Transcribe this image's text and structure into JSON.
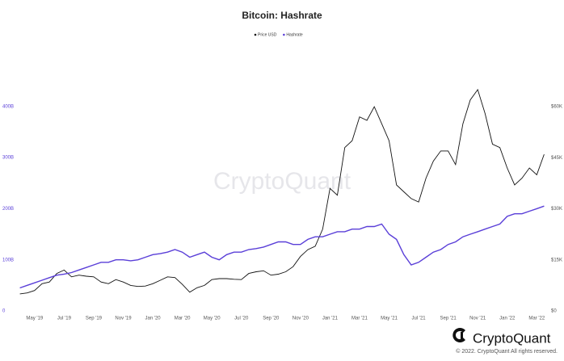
{
  "chart_data": {
    "type": "line",
    "title": "Bitcoin: Hashrate",
    "x": [
      null,
      null,
      "May '19",
      null,
      null,
      null,
      "Jul '19",
      null,
      null,
      null,
      "Sep '19",
      null,
      null,
      null,
      "Nov '19",
      null,
      null,
      null,
      "Jan '20",
      null,
      null,
      null,
      "Mar '20",
      null,
      null,
      null,
      "May '20",
      null,
      null,
      null,
      "Jul '20",
      null,
      null,
      null,
      "Sep '20",
      null,
      null,
      null,
      "Nov '20",
      null,
      null,
      null,
      "Jan '21",
      null,
      null,
      null,
      "Mar '21",
      null,
      null,
      null,
      "May '21",
      null,
      null,
      null,
      "Jul '21",
      null,
      null,
      null,
      "Sep '21",
      null,
      null,
      null,
      "Nov '21",
      null,
      null,
      null,
      "Jan '22",
      null,
      null,
      null,
      "Mar '22",
      null
    ],
    "series": [
      {
        "name": "Price USD",
        "color": "#111111",
        "axis": "y2",
        "values": [
          5000,
          5300,
          6000,
          8000,
          8500,
          11000,
          12000,
          10000,
          10500,
          10200,
          10000,
          8500,
          8000,
          9200,
          8500,
          7500,
          7200,
          7300,
          8000,
          9000,
          10000,
          9800,
          7800,
          5500,
          6800,
          7500,
          9200,
          9500,
          9500,
          9300,
          9200,
          11000,
          11500,
          11800,
          10500,
          10800,
          11500,
          13000,
          16000,
          18000,
          19000,
          24000,
          36000,
          34000,
          48000,
          50000,
          57000,
          56000,
          60000,
          55000,
          50000,
          37000,
          35000,
          33000,
          32000,
          39000,
          44000,
          47000,
          47000,
          43000,
          55000,
          62000,
          65000,
          58000,
          49000,
          48000,
          42000,
          37000,
          39000,
          42000,
          40000,
          46000
        ]
      },
      {
        "name": "Hashrate",
        "color": "#5a3fd8",
        "values": [
          45000000000.0,
          50000000000.0,
          55000000000.0,
          60000000000.0,
          65000000000.0,
          70000000000.0,
          72000000000.0,
          75000000000.0,
          80000000000.0,
          85000000000.0,
          90000000000.0,
          95000000000.0,
          95000000000.0,
          100000000000.0,
          100000000000.0,
          98000000000.0,
          100000000000.0,
          105000000000.0,
          110000000000.0,
          112000000000.0,
          115000000000.0,
          120000000000.0,
          115000000000.0,
          105000000000.0,
          110000000000.0,
          115000000000.0,
          105000000000.0,
          100000000000.0,
          110000000000.0,
          115000000000.0,
          115000000000.0,
          120000000000.0,
          122000000000.0,
          125000000000.0,
          130000000000.0,
          135000000000.0,
          135000000000.0,
          130000000000.0,
          130000000000.0,
          140000000000.0,
          145000000000.0,
          145000000000.0,
          150000000000.0,
          155000000000.0,
          155000000000.0,
          160000000000.0,
          160000000000.0,
          165000000000.0,
          165000000000.0,
          170000000000.0,
          150000000000.0,
          140000000000.0,
          110000000000.0,
          90000000000.0,
          95000000000.0,
          105000000000.0,
          115000000000.0,
          120000000000.0,
          130000000000.0,
          135000000000.0,
          145000000000.0,
          150000000000.0,
          155000000000.0,
          160000000000.0,
          165000000000.0,
          170000000000.0,
          185000000000.0,
          190000000000.0,
          190000000000.0,
          195000000000.0,
          200000000000.0,
          205000000000.0
        ]
      }
    ],
    "ylim": [
      0,
      458000000000
    ],
    "yticks": [
      {
        "value": 0,
        "label": "0"
      },
      {
        "value": 100000000000,
        "label": "100B"
      },
      {
        "value": 200000000000,
        "label": "200B"
      },
      {
        "value": 300000000000,
        "label": "300B"
      },
      {
        "value": 400000000000,
        "label": "400B"
      }
    ],
    "y2lim": [
      0,
      68800
    ],
    "y2ticks": [
      {
        "value": 0,
        "label": "$0"
      },
      {
        "value": 15000,
        "label": "$15K"
      },
      {
        "value": 30000,
        "label": "$30K"
      },
      {
        "value": 45000,
        "label": "$45K"
      },
      {
        "value": 60000,
        "label": "$60K"
      }
    ],
    "grid": false
  },
  "watermark": "CryptoQuant",
  "brand": "CryptoQuant",
  "copyright": "© 2022. CryptoQuant All rights reserved."
}
